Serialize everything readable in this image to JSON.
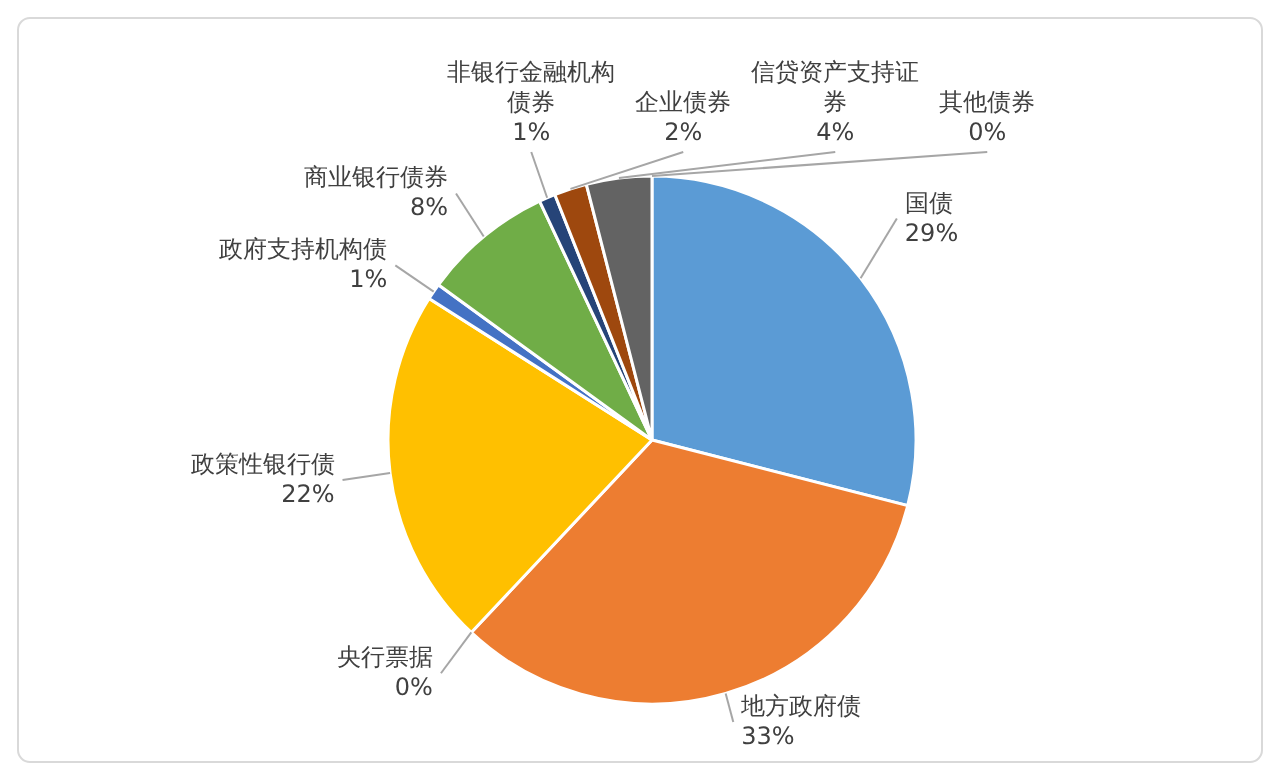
{
  "chart_data": {
    "type": "pie",
    "categories": [
      "国债",
      "地方政府债",
      "央行票据",
      "政策性银行债",
      "政府支持机构债",
      "商业银行债券",
      "非银行金融机构债券",
      "企业债券",
      "信贷资产支持证券",
      "其他债券"
    ],
    "values": [
      29,
      33,
      0,
      22,
      1,
      8,
      1,
      2,
      4,
      0
    ],
    "value_labels": [
      "29%",
      "33%",
      "0%",
      "22%",
      "1%",
      "8%",
      "1%",
      "2%",
      "4%",
      "0%"
    ],
    "colors": [
      "#5b9bd5",
      "#ed7d31",
      "#a5a5a5",
      "#ffc000",
      "#4472c4",
      "#70ad47",
      "#264478",
      "#9e480e",
      "#636363",
      "#997300"
    ]
  }
}
